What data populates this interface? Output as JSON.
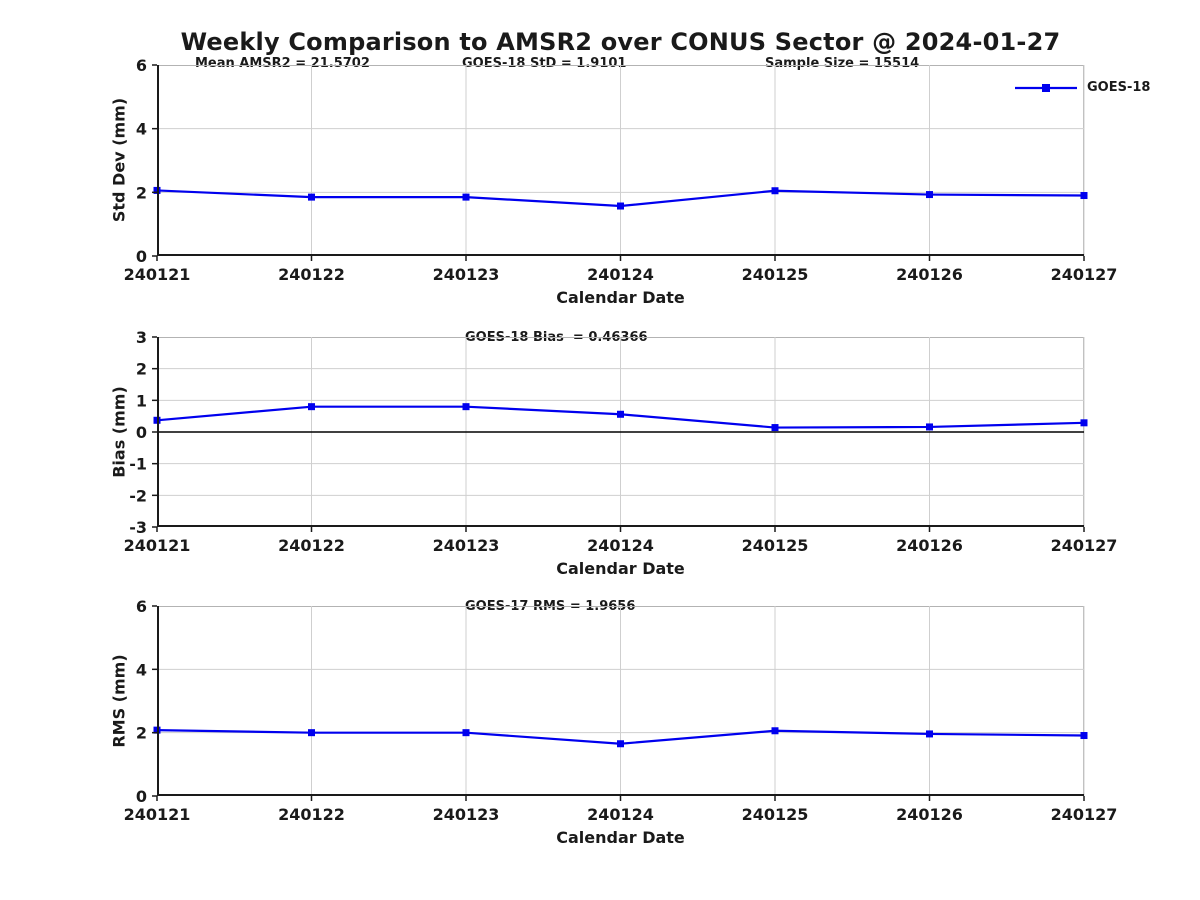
{
  "figure": {
    "title": "Weekly Comparison to AMSR2 over CONUS Sector @ 2024-01-27",
    "background": "#ffffff"
  },
  "colors": {
    "line": "#0000ee",
    "grid": "#cfcfcf",
    "axis": "#1a1a1a",
    "spine_light": "#b3b3b3",
    "text": "#1a1a1a"
  },
  "legend": {
    "label": "GOES-18",
    "marker": "square-icon",
    "position": "top-right"
  },
  "chart_data": [
    {
      "type": "line",
      "subplot": "std_dev",
      "ylabel": "Std Dev (mm)",
      "xlabel": "Calendar Date",
      "categories": [
        "240121",
        "240122",
        "240123",
        "240124",
        "240125",
        "240126",
        "240127"
      ],
      "series": [
        {
          "name": "GOES-18",
          "values": [
            2.06,
            1.85,
            1.85,
            1.57,
            2.05,
            1.93,
            1.9
          ]
        }
      ],
      "ylim": [
        0,
        6
      ],
      "yticks": [
        0,
        2,
        4,
        6
      ],
      "grid": true,
      "zero_line": false,
      "legend": "GOES-18",
      "annotations": [
        "Mean AMSR2 = 21.5702",
        "GOES-18 StD = 1.9101",
        "Sample Size = 15514"
      ]
    },
    {
      "type": "line",
      "subplot": "bias",
      "ylabel": "Bias (mm)",
      "xlabel": "Calendar Date",
      "categories": [
        "240121",
        "240122",
        "240123",
        "240124",
        "240125",
        "240126",
        "240127"
      ],
      "series": [
        {
          "name": "GOES-18",
          "values": [
            0.37,
            0.8,
            0.8,
            0.56,
            0.14,
            0.16,
            0.29
          ]
        }
      ],
      "ylim": [
        -3,
        3
      ],
      "yticks": [
        -3,
        -2,
        -1,
        0,
        1,
        2,
        3
      ],
      "grid": true,
      "zero_line": true,
      "annotations": [
        "GOES-18 Bias  = 0.46366"
      ]
    },
    {
      "type": "line",
      "subplot": "rms",
      "ylabel": "RMS (mm)",
      "xlabel": "Calendar Date",
      "categories": [
        "240121",
        "240122",
        "240123",
        "240124",
        "240125",
        "240126",
        "240127"
      ],
      "series": [
        {
          "name": "GOES-18",
          "values": [
            2.08,
            2.0,
            2.0,
            1.65,
            2.06,
            1.96,
            1.91
          ]
        }
      ],
      "ylim": [
        0,
        6
      ],
      "yticks": [
        0,
        2,
        4,
        6
      ],
      "grid": true,
      "zero_line": false,
      "annotations": [
        "GOES-17 RMS = 1.9656"
      ]
    }
  ]
}
